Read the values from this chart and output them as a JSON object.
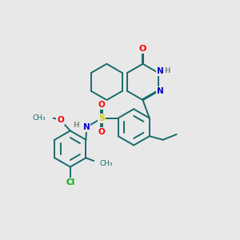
{
  "background_color": "#e8e8e8",
  "figsize": [
    3.0,
    3.0
  ],
  "dpi": 100,
  "atom_colors": {
    "C": "#000000",
    "N": "#0000cc",
    "O": "#ff0000",
    "S": "#cccc00",
    "Cl": "#00aa00",
    "H": "#888888"
  },
  "bond_color": "#1a6b6b",
  "bond_width": 1.4
}
